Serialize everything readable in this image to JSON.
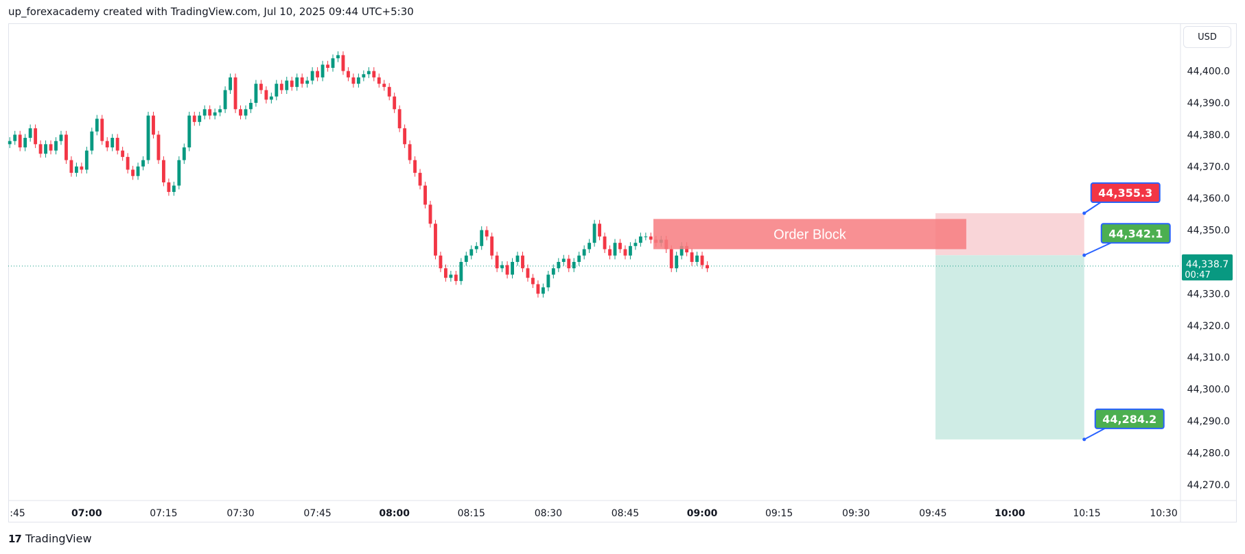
{
  "caption": "up_forexacademy created with TradingView.com, Jul 10, 2025 09:44 UTC+5:30",
  "currency": "USD",
  "footer": {
    "brand": "TradingView",
    "logo_text": "17"
  },
  "colors": {
    "up": "#089981",
    "down": "#f23645",
    "order_block": "#f77c80",
    "stop_zone": "#f9d5d8",
    "target_zone": "#cfece5",
    "current_price": "#089981",
    "label_red": "#f23645",
    "label_green": "#4caf50",
    "label_border": "#2962ff"
  },
  "chart_data": {
    "type": "candlestick",
    "y_ticks": [
      "44,270.0",
      "44,280.0",
      "44,290.0",
      "44,300.0",
      "44,310.0",
      "44,320.0",
      "44,330.0",
      "44,350.0",
      "44,360.0",
      "44,370.0",
      "44,380.0",
      "44,390.0",
      "44,400.0"
    ],
    "ylim": [
      44265,
      44415
    ],
    "x_ticks": [
      {
        "label": ":45",
        "bold": false,
        "t": -15
      },
      {
        "label": "07:00",
        "bold": true,
        "t": 0
      },
      {
        "label": "07:15",
        "bold": false,
        "t": 15
      },
      {
        "label": "07:30",
        "bold": false,
        "t": 30
      },
      {
        "label": "07:45",
        "bold": false,
        "t": 45
      },
      {
        "label": "08:00",
        "bold": true,
        "t": 60
      },
      {
        "label": "08:15",
        "bold": false,
        "t": 75
      },
      {
        "label": "08:30",
        "bold": false,
        "t": 90
      },
      {
        "label": "08:45",
        "bold": false,
        "t": 105
      },
      {
        "label": "09:00",
        "bold": true,
        "t": 120
      },
      {
        "label": "09:15",
        "bold": false,
        "t": 135
      },
      {
        "label": "09:30",
        "bold": false,
        "t": 150
      },
      {
        "label": "09:45",
        "bold": false,
        "t": 165
      },
      {
        "label": "10:00",
        "bold": true,
        "t": 180
      },
      {
        "label": "10:15",
        "bold": false,
        "t": 195
      },
      {
        "label": "10:30",
        "bold": false,
        "t": 210
      }
    ],
    "xlim": [
      -15.3,
      213
    ],
    "candle_start_t": -15,
    "candle_closes": [
      44378,
      44380,
      44376,
      44379,
      44382,
      44377,
      44374,
      44377,
      44375,
      44378,
      44380,
      44372,
      44368,
      44370,
      44369,
      44375,
      44381,
      44385,
      44378,
      44376,
      44379,
      44375,
      44373,
      44369,
      44367,
      44370,
      44372,
      44386,
      44380,
      44372,
      44365,
      44362,
      44364,
      44372,
      44376,
      44386,
      44384,
      44386,
      44388,
      44386,
      44387,
      44388,
      44394,
      44398,
      44388,
      44386,
      44388,
      44390,
      44396,
      44394,
      44391,
      44392,
      44396,
      44394,
      44397,
      44395,
      44398,
      44396,
      44397,
      44400,
      44398,
      44402,
      44401,
      44404,
      44405,
      44400,
      44398,
      44396,
      44398,
      44399,
      44400,
      44398,
      44396,
      44395,
      44392,
      44388,
      44382,
      44377,
      44372,
      44368,
      44364,
      44358,
      44352,
      44342,
      44338,
      44335,
      44336,
      44334,
      44340,
      44342,
      44344,
      44345,
      44350,
      44348,
      44342,
      44338,
      44339,
      44336,
      44340,
      44342,
      44338,
      44335,
      44333,
      44330,
      44332,
      44336,
      44338,
      44340,
      44341,
      44338,
      44340,
      44342,
      44344,
      44346,
      44352,
      44348,
      44344,
      44342,
      44346,
      44344,
      44342,
      44345,
      44346,
      44348,
      44348,
      44347,
      44346,
      44347,
      44344,
      44338,
      44342,
      44345,
      44343,
      44340,
      44342,
      44339,
      44338
    ],
    "candle_opens_note": "",
    "order_block": {
      "label": "Order Block",
      "t_start": 110.5,
      "t_end": 171.5,
      "y_top": 44353.5,
      "y_bottom": 44344.0
    },
    "position": {
      "t_start": 165.5,
      "t_end": 194.5,
      "entry": 44342.1,
      "stop": 44355.3,
      "target": 44284.2
    },
    "price_labels": [
      {
        "text": "44,355.3",
        "kind": "stop"
      },
      {
        "text": "44,342.1",
        "kind": "entry"
      },
      {
        "text": "44,284.2",
        "kind": "target"
      }
    ],
    "current_price": {
      "value": 44338.7,
      "label": "44,338.7",
      "countdown": "00:47"
    }
  }
}
